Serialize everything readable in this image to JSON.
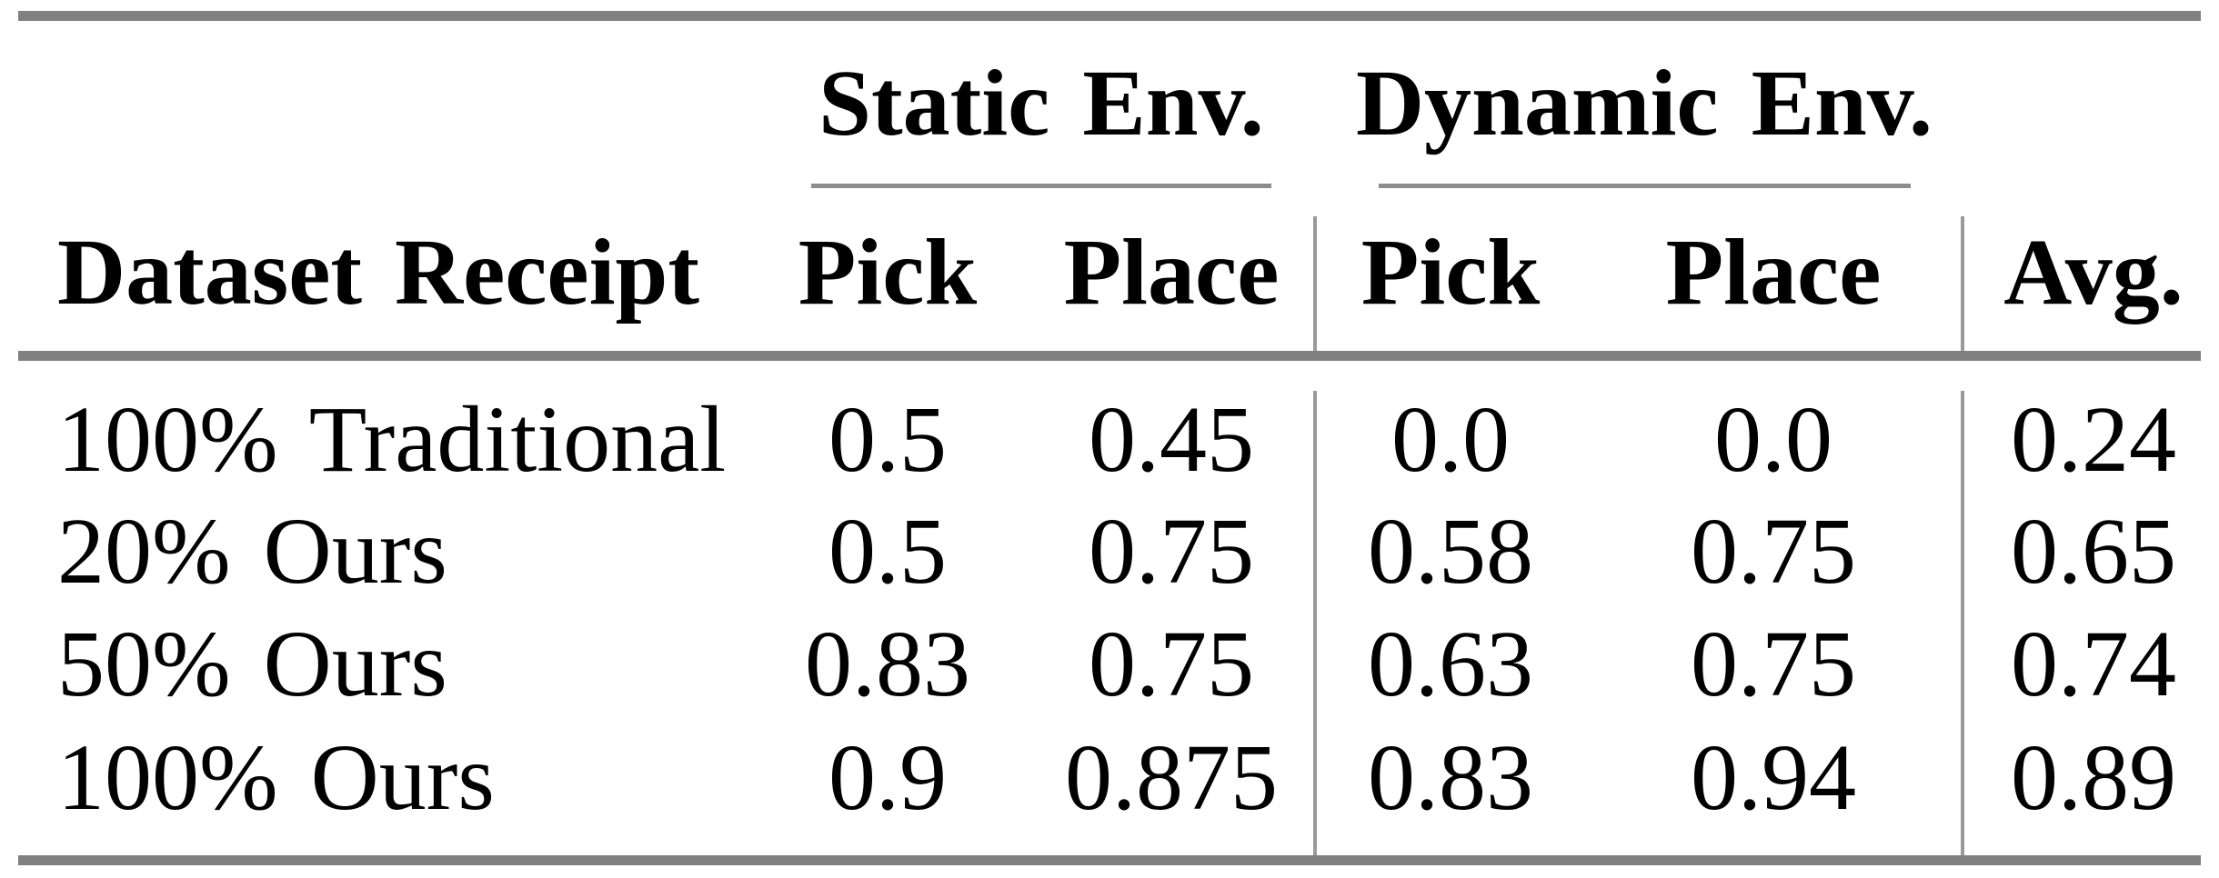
{
  "colors": {
    "background": "#ffffff",
    "text": "#000000",
    "rule_thick": "#808080",
    "rule_cmid": "#8c8c8c",
    "rule_vertical": "#9a9a9a"
  },
  "table": {
    "group_headers": [
      {
        "label": "Static Env."
      },
      {
        "label": "Dynamic Env."
      }
    ],
    "columns": [
      "Dataset Receipt",
      "Pick",
      "Place",
      "Pick",
      "Place",
      "Avg."
    ],
    "rows": [
      {
        "dataset": "100% Traditional",
        "static_pick": "0.5",
        "static_place": "0.45",
        "dynamic_pick": "0.0",
        "dynamic_place": "0.0",
        "avg": "0.24"
      },
      {
        "dataset": "20% Ours",
        "static_pick": "0.5",
        "static_place": "0.75",
        "dynamic_pick": "0.58",
        "dynamic_place": "0.75",
        "avg": "0.65"
      },
      {
        "dataset": "50% Ours",
        "static_pick": "0.83",
        "static_place": "0.75",
        "dynamic_pick": "0.63",
        "dynamic_place": "0.75",
        "avg": "0.74"
      },
      {
        "dataset": "100% Ours",
        "static_pick": "0.9",
        "static_place": "0.875",
        "dynamic_pick": "0.83",
        "dynamic_place": "0.94",
        "avg": "0.89"
      }
    ]
  },
  "chart_data": {
    "type": "table",
    "title": "",
    "column_groups": [
      {
        "label": "Static Env.",
        "columns": [
          "Pick",
          "Place"
        ]
      },
      {
        "label": "Dynamic Env.",
        "columns": [
          "Pick",
          "Place"
        ]
      }
    ],
    "columns": [
      "Dataset Receipt",
      "Static Pick",
      "Static Place",
      "Dynamic Pick",
      "Dynamic Place",
      "Avg."
    ],
    "rows": [
      [
        "100% Traditional",
        0.5,
        0.45,
        0.0,
        0.0,
        0.24
      ],
      [
        "20% Ours",
        0.5,
        0.75,
        0.58,
        0.75,
        0.65
      ],
      [
        "50% Ours",
        0.83,
        0.75,
        0.63,
        0.75,
        0.74
      ],
      [
        "100% Ours",
        0.9,
        0.875,
        0.83,
        0.94,
        0.89
      ]
    ]
  }
}
